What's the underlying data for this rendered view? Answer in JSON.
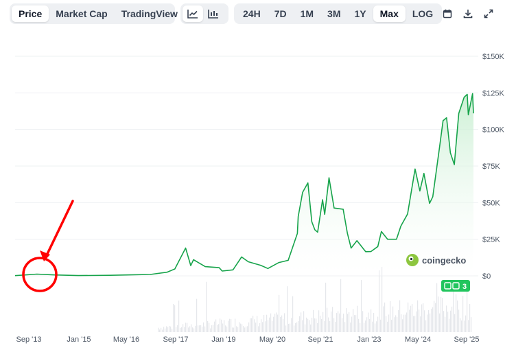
{
  "toolbar": {
    "view_tabs": [
      "Price",
      "Market Cap",
      "TradingView"
    ],
    "chart_icons": [
      "line-chart-icon",
      "candlestick-chart-icon"
    ],
    "ranges": [
      "24H",
      "7D",
      "1M",
      "3M",
      "1Y",
      "Max",
      "LOG"
    ],
    "active_view": "Price",
    "active_range": "Max",
    "tool_icons": [
      "calendar-icon",
      "download-icon",
      "expand-icon"
    ]
  },
  "watermark": {
    "text": "coingecko"
  },
  "badge": {
    "count": "3"
  },
  "colors": {
    "line": "#16a34a",
    "area_top": "#c9efd2",
    "volume": "#e5e7eb",
    "annotation": "#ff0000",
    "badge": "#22c55e"
  },
  "chart_data": {
    "type": "area",
    "x_ticks": [
      "Sep '13",
      "Jan '15",
      "May '16",
      "Sep '17",
      "Jan '19",
      "May '20",
      "Sep '21",
      "Jan '23",
      "May '24",
      "Sep '25"
    ],
    "y_ticks": [
      "$150K",
      "$125K",
      "$100K",
      "$75K",
      "$50K",
      "$25K",
      "$0"
    ],
    "ylim": [
      0,
      150000
    ],
    "xlim": [
      "2013-04-28",
      "2025-10-15"
    ],
    "grid": true,
    "series": [
      {
        "x": [
          "2013-04-28",
          "2013-11-30",
          "2014-06-01",
          "2015-01-15",
          "2015-12-01",
          "2016-06-15",
          "2016-12-31",
          "2017-06-15",
          "2017-09-01",
          "2017-12-17",
          "2018-02-06",
          "2018-03-05",
          "2018-06-30",
          "2018-11-15",
          "2018-12-15",
          "2019-04-01",
          "2019-06-26",
          "2019-09-01",
          "2019-12-31",
          "2020-03-13",
          "2020-07-01",
          "2020-10-01",
          "2020-12-31",
          "2021-01-08",
          "2021-02-21",
          "2021-04-14",
          "2021-05-23",
          "2021-06-22",
          "2021-07-20",
          "2021-09-07",
          "2021-09-28",
          "2021-11-10",
          "2021-12-31",
          "2022-03-31",
          "2022-05-12",
          "2022-06-18",
          "2022-08-15",
          "2022-11-09",
          "2022-12-31",
          "2023-03-10",
          "2023-04-14",
          "2023-06-15",
          "2023-09-11",
          "2023-10-25",
          "2023-12-31",
          "2024-03-14",
          "2024-05-01",
          "2024-06-10",
          "2024-08-05",
          "2024-09-06",
          "2024-11-12",
          "2024-12-17",
          "2025-01-21",
          "2025-02-28",
          "2025-04-08",
          "2025-05-22",
          "2025-07-14",
          "2025-08-14",
          "2025-08-25",
          "2025-10-06",
          "2025-10-15"
        ],
        "y": [
          130,
          1150,
          630,
          200,
          360,
          670,
          960,
          2500,
          4700,
          19000,
          7000,
          11000,
          6300,
          5600,
          3300,
          4100,
          12900,
          9600,
          7200,
          5000,
          9100,
          10600,
          29000,
          40500,
          57000,
          63500,
          37000,
          31500,
          29800,
          52000,
          42000,
          67000,
          46300,
          45500,
          29000,
          19000,
          24000,
          16500,
          16600,
          20000,
          30300,
          25000,
          25000,
          34000,
          42300,
          73000,
          58000,
          70000,
          49500,
          54000,
          88000,
          106000,
          108000,
          84000,
          76000,
          111000,
          122000,
          124000,
          110000,
          124500,
          111000
        ]
      }
    ]
  }
}
